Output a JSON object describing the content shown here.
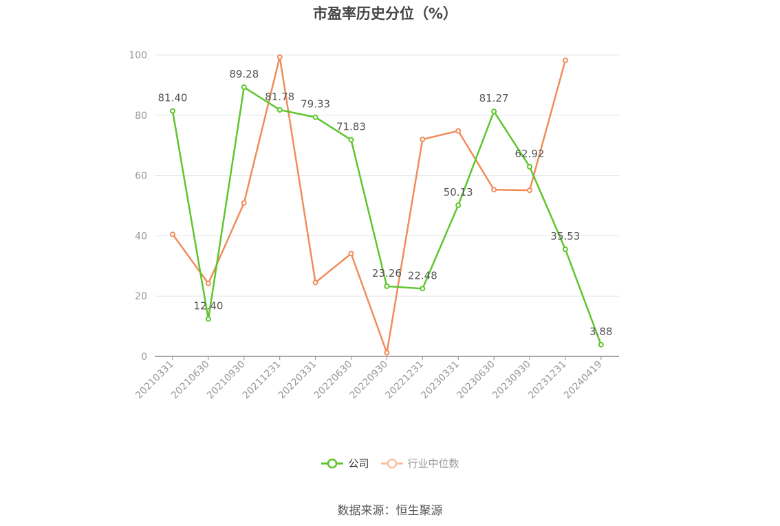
{
  "chart_data": {
    "type": "line",
    "title": "市盈率历史分位（%）",
    "categories": [
      "20210331",
      "20210630",
      "20210930",
      "20211231",
      "20220331",
      "20220630",
      "20220930",
      "20221231",
      "20230331",
      "20230630",
      "20230930",
      "20231231",
      "20240419"
    ],
    "series": [
      {
        "name": "公司",
        "color": "#5ec52c",
        "values": [
          81.4,
          12.4,
          89.28,
          81.78,
          79.33,
          71.83,
          23.26,
          22.48,
          50.13,
          81.27,
          62.92,
          35.53,
          3.88
        ],
        "labels": [
          "81.40",
          "12.40",
          "89.28",
          "81.78",
          "79.33",
          "71.83",
          "23.26",
          "22.48",
          "50.13",
          "81.27",
          "62.92",
          "35.53",
          "3.88"
        ]
      },
      {
        "name": "行业中位数",
        "color": "#f08c5a",
        "legend_color": "#f9bfa0",
        "values": [
          40.5,
          24.2,
          50.9,
          99.3,
          24.5,
          34.1,
          1.2,
          72.0,
          74.8,
          55.3,
          55.1,
          98.2,
          null
        ]
      }
    ],
    "yticks": [
      0,
      20,
      40,
      60,
      80,
      100
    ],
    "ylim": [
      0,
      100
    ],
    "grid": true,
    "legend_position": "bottom-center"
  },
  "source": "数据来源：恒生聚源"
}
